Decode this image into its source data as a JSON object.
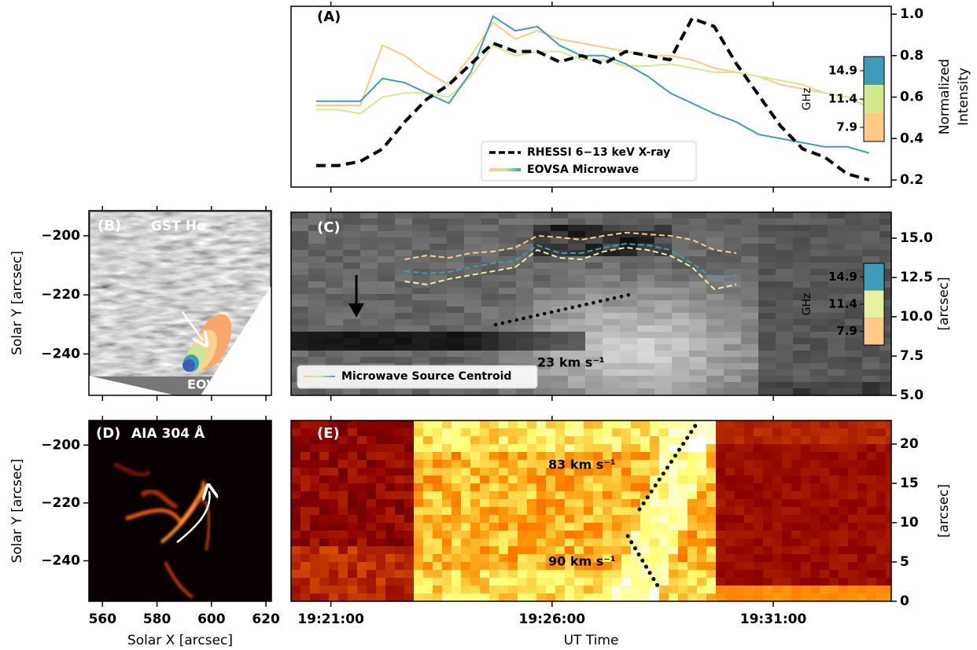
{
  "chart_data": [
    {
      "type": "line",
      "label": "(A)",
      "x": [
        "19:20:40",
        "19:21:10",
        "19:21:40",
        "19:22:10",
        "19:22:40",
        "19:23:10",
        "19:23:40",
        "19:24:10",
        "19:24:40",
        "19:25:10",
        "19:25:40",
        "19:26:10",
        "19:26:40",
        "19:27:10",
        "19:27:40",
        "19:28:10",
        "19:28:40",
        "19:29:10",
        "19:29:40",
        "19:30:10",
        "19:30:40",
        "19:31:10",
        "19:31:40",
        "19:32:10",
        "19:32:40",
        "19:33:10"
      ],
      "xlim": [
        "19:20:06",
        "19:33:40"
      ],
      "xticks": [
        "19:21:00",
        "19:26:00",
        "19:31:00"
      ],
      "xticklabels": false,
      "ylim": [
        0.166,
        1.038
      ],
      "yticks": [
        0.2,
        0.4,
        0.6,
        0.8,
        {
          "value": 1,
          "label": "1.0"
        }
      ],
      "ylabel": [
        "Normalized",
        "Intensity"
      ],
      "yaxis": "right",
      "series": [
        {
          "name": "RHESSI 6−13 keV X-ray",
          "color": "#000000",
          "dashed": true,
          "values": [
            0.27,
            0.27,
            0.29,
            0.35,
            0.48,
            0.59,
            0.66,
            0.76,
            0.86,
            0.82,
            0.82,
            0.77,
            0.8,
            0.76,
            0.82,
            0.8,
            0.78,
            0.98,
            0.94,
            0.76,
            0.61,
            0.46,
            0.35,
            0.31,
            0.23,
            0.2
          ]
        }
      ],
      "microwave": {
        "name": "EOVSA Microwave",
        "label": "GHz",
        "bands": [
          {
            "freq": 14.9,
            "color": "#3d9db8",
            "values": [
              0.58,
              0.58,
              0.58,
              0.69,
              0.67,
              0.62,
              0.57,
              0.72,
              0.99,
              0.92,
              0.94,
              0.85,
              0.8,
              0.8,
              0.76,
              0.7,
              0.62,
              0.57,
              0.52,
              0.48,
              0.42,
              0.4,
              0.38,
              0.36,
              0.36,
              0.33
            ]
          },
          {
            "freq": 11.4,
            "color": "#d4e98e",
            "values": [
              0.54,
              0.54,
              0.52,
              0.6,
              0.62,
              0.62,
              0.6,
              0.7,
              0.85,
              0.8,
              0.82,
              0.82,
              0.78,
              0.78,
              0.75,
              0.75,
              0.76,
              0.74,
              0.72,
              0.72,
              0.7,
              0.68,
              0.66,
              0.62,
              0.6,
              0.58
            ]
          },
          {
            "freq": 7.9,
            "color": "#fdc987",
            "values": [
              0.56,
              0.56,
              0.56,
              0.85,
              0.8,
              0.72,
              0.66,
              0.8,
              0.96,
              0.88,
              0.92,
              0.88,
              0.86,
              0.84,
              0.82,
              0.8,
              0.8,
              0.78,
              0.74,
              0.72,
              0.7,
              0.66,
              0.64,
              0.62,
              0.6,
              0.55
            ]
          }
        ]
      }
    },
    {
      "type": "image",
      "label": "(B)",
      "title": "GST Hα",
      "annotations": [
        "EOVSA"
      ],
      "xlim": [
        555,
        622
      ],
      "xticks": [
        560,
        580,
        600,
        620
      ],
      "xticklabels": false,
      "ylim": [
        -254,
        -191.5
      ],
      "yticks": [
        {
          "value": -200,
          "label": "−200"
        },
        {
          "value": -220,
          "label": "−220"
        },
        {
          "value": -240,
          "label": "−240"
        }
      ],
      "ylabel": "Solar Y [arcsec]",
      "yaxis": "left"
    },
    {
      "type": "image",
      "label": "(C)",
      "annotations": [
        "23 km s⁻¹"
      ],
      "xlim": [
        "19:20:06",
        "19:33:40"
      ],
      "xticks": [
        "19:21:00",
        "19:26:00",
        "19:31:00"
      ],
      "xticklabels": false,
      "ylim": [
        5,
        16.65
      ],
      "yticks": [
        {
          "value": 5,
          "label": "5.0"
        },
        7.5,
        {
          "value": 10,
          "label": "10.0"
        },
        12.5,
        {
          "value": 15,
          "label": "15.0"
        }
      ],
      "ylabel": "[arcsec]",
      "yaxis": "right",
      "centroid": {
        "name": "Microwave Source Centroid",
        "label": "GHz",
        "x": [
          "19:22:40",
          "19:23:10",
          "19:23:40",
          "19:24:10",
          "19:24:40",
          "19:25:10",
          "19:25:40",
          "19:26:10",
          "19:26:40",
          "19:27:10",
          "19:27:40",
          "19:28:10",
          "19:28:40",
          "19:29:10",
          "19:29:40",
          "19:30:10"
        ],
        "bands": [
          {
            "freq": 14.9,
            "color": "#3d9db8",
            "values": [
              12.9,
              12.75,
              12.85,
              13.15,
              13.4,
              13.55,
              14.55,
              14.05,
              14.05,
              14.4,
              14.65,
              14.55,
              14.25,
              13.4,
              12.4,
              12.65
            ]
          },
          {
            "freq": 11.4,
            "color": "#e6f2a0",
            "values": [
              12.25,
              12.05,
              12.4,
              12.65,
              12.9,
              13.15,
              14.25,
              13.75,
              13.65,
              14.15,
              14.4,
              14.25,
              13.9,
              13.15,
              11.75,
              12.05
            ]
          },
          {
            "freq": 7.9,
            "color": "#fdc987",
            "values": [
              13.65,
              13.9,
              13.75,
              14.05,
              14.15,
              14.4,
              15.15,
              15.05,
              14.9,
              15.15,
              15.35,
              15.25,
              15.15,
              14.9,
              14.25,
              14.05
            ]
          }
        ]
      }
    },
    {
      "type": "image",
      "label": "(D)",
      "title": "AIA 304 Å",
      "xlim": [
        555,
        622
      ],
      "xticks": [
        560,
        580,
        600,
        620
      ],
      "xticklabels": true,
      "xlabel": "Solar X [arcsec]",
      "ylim": [
        -254,
        -191.5
      ],
      "yticks": [
        {
          "value": -200,
          "label": "−200"
        },
        {
          "value": -220,
          "label": "−220"
        },
        {
          "value": -240,
          "label": "−240"
        }
      ],
      "ylabel": "Solar Y [arcsec]",
      "yaxis": "left"
    },
    {
      "type": "image",
      "label": "(E)",
      "annotations": [
        "83 km s⁻¹",
        "90 km s⁻¹"
      ],
      "xlim": [
        "19:20:06",
        "19:33:40"
      ],
      "xticks": [
        "19:21:00",
        "19:26:00",
        "19:31:00"
      ],
      "xticklabels": true,
      "xlabel": "UT Time",
      "ylim": [
        0,
        23
      ],
      "yticks": [
        0,
        5,
        10,
        15,
        20
      ],
      "ylabel": "[arcsec]",
      "yaxis": "right"
    }
  ]
}
